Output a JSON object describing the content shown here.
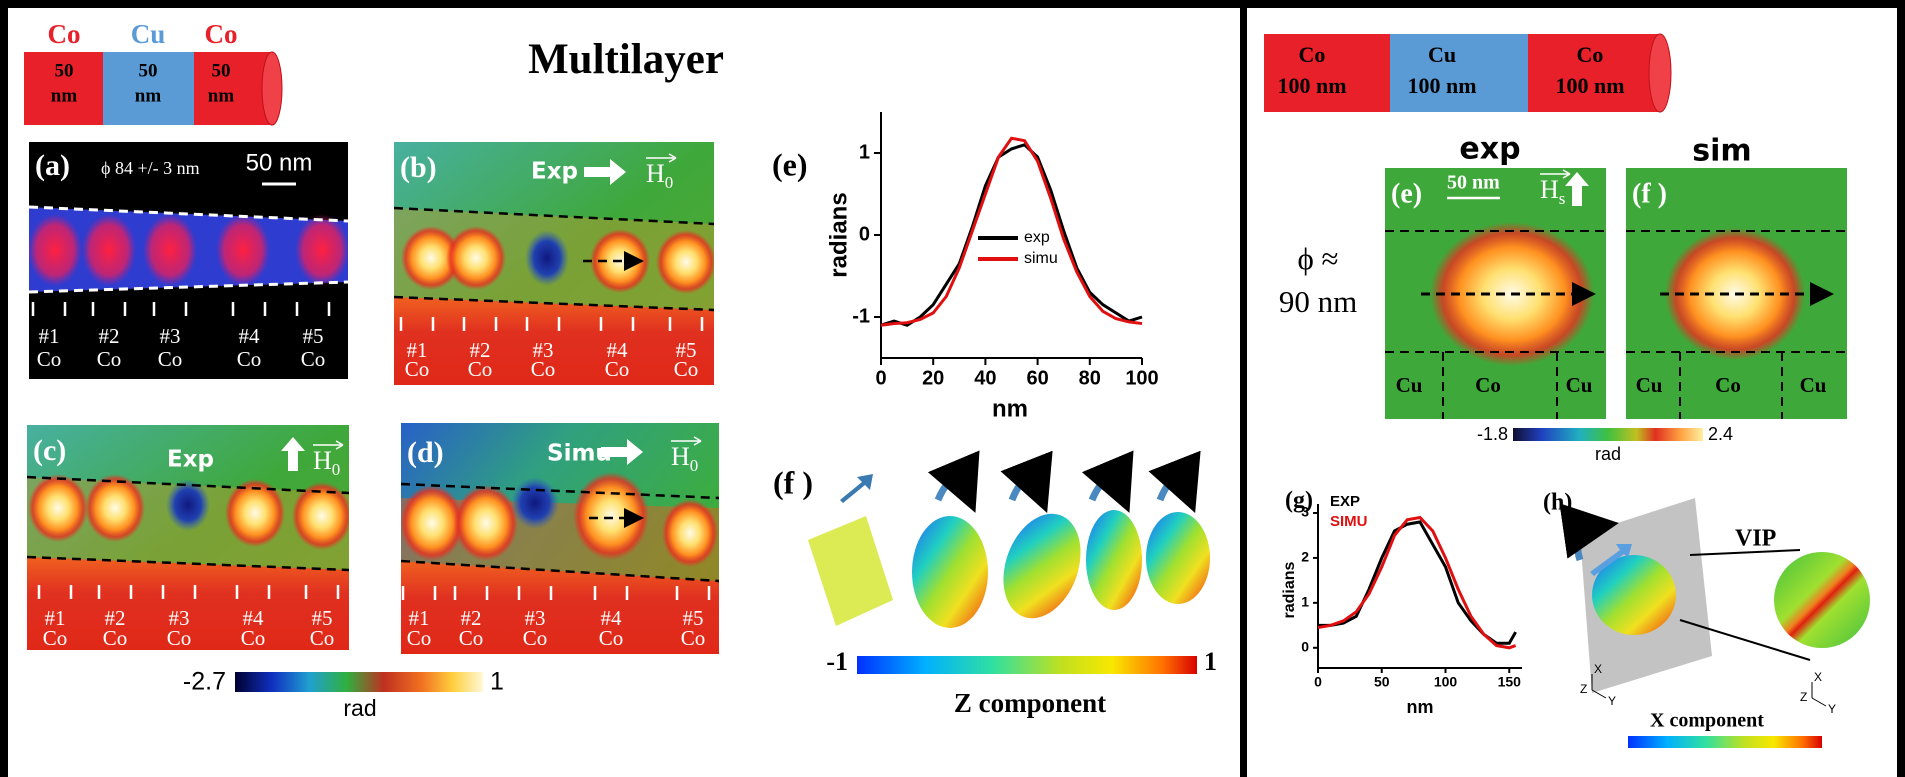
{
  "left": {
    "cylinder": [
      {
        "material": "Co",
        "size": "50",
        "unit": "nm"
      },
      {
        "material": "Cu",
        "size": "50",
        "unit": "nm"
      },
      {
        "material": "Co",
        "size": "50",
        "unit": "nm"
      }
    ],
    "title": "Multilayer",
    "panel_a": {
      "label": "(a)",
      "diameter": "ϕ 84 +/- 3 nm",
      "scale": "50 nm",
      "wires": [
        {
          "id": "#1",
          "material": "Co"
        },
        {
          "id": "#2",
          "material": "Co"
        },
        {
          "id": "#3",
          "material": "Co"
        },
        {
          "id": "#4",
          "material": "Co"
        },
        {
          "id": "#5",
          "material": "Co"
        }
      ]
    },
    "panel_b": {
      "label": "(b)",
      "mode": "Exp",
      "field": {
        "symbol": "H",
        "subscript": "0"
      },
      "wires": [
        {
          "id": "#1",
          "material": "Co"
        },
        {
          "id": "#2",
          "material": "Co"
        },
        {
          "id": "#3",
          "material": "Co"
        },
        {
          "id": "#4",
          "material": "Co"
        },
        {
          "id": "#5",
          "material": "Co"
        }
      ]
    },
    "panel_c": {
      "label": "(c)",
      "mode": "Exp",
      "field": {
        "symbol": "H",
        "subscript": "0"
      },
      "wires": [
        {
          "id": "#1",
          "material": "Co"
        },
        {
          "id": "#2",
          "material": "Co"
        },
        {
          "id": "#3",
          "material": "Co"
        },
        {
          "id": "#4",
          "material": "Co"
        },
        {
          "id": "#5",
          "material": "Co"
        }
      ]
    },
    "panel_d": {
      "label": "(d)",
      "mode": "Simu",
      "field": {
        "symbol": "H",
        "subscript": "0"
      },
      "wires": [
        {
          "id": "#1",
          "material": "Co"
        },
        {
          "id": "#2",
          "material": "Co"
        },
        {
          "id": "#3",
          "material": "Co"
        },
        {
          "id": "#4",
          "material": "Co"
        },
        {
          "id": "#5",
          "material": "Co"
        }
      ]
    },
    "colorbar": {
      "min": -2.7,
      "max": 1,
      "unit": "rad"
    },
    "panel_f": {
      "label": "(f )",
      "colorbar": {
        "min": -1,
        "max": 1
      },
      "caption": "Z component"
    }
  },
  "right": {
    "cylinder": [
      {
        "material": "Co",
        "size": "100 nm"
      },
      {
        "material": "Cu",
        "size": "100 nm"
      },
      {
        "material": "Co",
        "size": "100 nm"
      }
    ],
    "headings": [
      "exp",
      "sim"
    ],
    "diameter": [
      "ϕ ≈",
      "90 nm"
    ],
    "panel_e": {
      "label": "(e)",
      "scale": "50 nm",
      "field": {
        "symbol": "H",
        "subscript": "s"
      },
      "segments": [
        "Cu",
        "Co",
        "Cu"
      ]
    },
    "panel_f": {
      "label": "(f )",
      "segments": [
        "Cu",
        "Co",
        "Cu"
      ]
    },
    "colorbar": {
      "min": -1.8,
      "max": 2.4,
      "unit": "rad"
    },
    "panel_h": {
      "label": "(h)",
      "plane": "VIP",
      "caption": "X component",
      "axes": [
        [
          "X",
          "Z",
          "Y"
        ],
        [
          "X",
          "Z",
          "Y"
        ]
      ]
    }
  },
  "chart_data": [
    {
      "type": "line",
      "label": "(e)",
      "ylabel": "radians",
      "xlabel": "nm",
      "x": [
        0,
        5,
        10,
        15,
        20,
        25,
        30,
        35,
        40,
        45,
        50,
        55,
        60,
        65,
        70,
        75,
        80,
        85,
        90,
        95,
        100
      ],
      "series": [
        {
          "name": "exp",
          "color": "#000000",
          "values": [
            -1.1,
            -1.05,
            -1.1,
            -1.0,
            -0.85,
            -0.6,
            -0.35,
            0.1,
            0.6,
            0.95,
            1.05,
            1.1,
            0.95,
            0.55,
            0.05,
            -0.4,
            -0.7,
            -0.85,
            -0.95,
            -1.05,
            -1.0
          ]
        },
        {
          "name": "simu",
          "color": "#e01010",
          "values": [
            -1.1,
            -1.08,
            -1.07,
            -1.03,
            -0.95,
            -0.75,
            -0.4,
            0.05,
            0.5,
            0.95,
            1.18,
            1.15,
            0.9,
            0.45,
            -0.05,
            -0.45,
            -0.75,
            -0.93,
            -1.02,
            -1.06,
            -1.08
          ]
        }
      ],
      "xlim": [
        0,
        100
      ],
      "ylim": [
        -1.5,
        1.5
      ],
      "xticks": [
        0,
        20,
        40,
        60,
        80,
        100
      ],
      "yticks": [
        -1,
        0,
        1
      ]
    },
    {
      "type": "line",
      "label": "(g)",
      "ylabel": "radians",
      "xlabel": "nm",
      "x": [
        0,
        10,
        20,
        30,
        40,
        50,
        60,
        70,
        80,
        90,
        100,
        110,
        120,
        130,
        140,
        150,
        155
      ],
      "series": [
        {
          "name": "EXP",
          "color": "#000000",
          "values": [
            0.5,
            0.5,
            0.55,
            0.7,
            1.3,
            2.0,
            2.6,
            2.75,
            2.8,
            2.3,
            1.8,
            1.0,
            0.6,
            0.3,
            0.1,
            0.1,
            0.35
          ]
        },
        {
          "name": "SIMU",
          "color": "#e01010",
          "values": [
            0.45,
            0.5,
            0.6,
            0.8,
            1.2,
            1.8,
            2.5,
            2.85,
            2.9,
            2.6,
            2.0,
            1.3,
            0.7,
            0.3,
            0.05,
            0.0,
            0.05
          ]
        }
      ],
      "xlim": [
        0,
        160
      ],
      "ylim": [
        -0.45,
        3.2
      ],
      "xticks": [
        0,
        50,
        100,
        150
      ],
      "yticks": [
        0,
        1,
        2,
        3
      ]
    }
  ]
}
